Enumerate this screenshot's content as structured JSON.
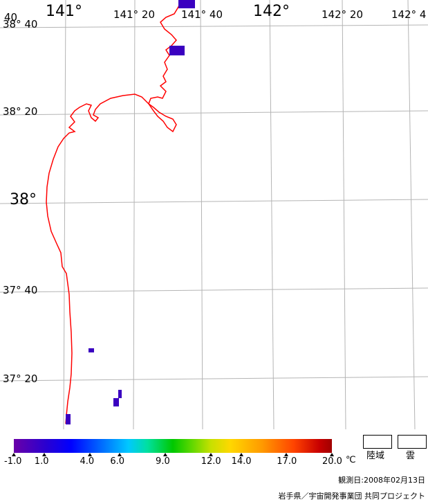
{
  "lon_labels": [
    "40",
    "141°",
    "141° 20",
    "141° 40",
    "142°",
    "142° 20",
    "142° 4"
  ],
  "lat_labels": [
    "38° 40",
    "38° 20",
    "38°",
    "37° 40",
    "37° 20"
  ],
  "colorbar": {
    "ticks": [
      "-1.0",
      "1.0",
      "4.0",
      "6.0",
      "9.0",
      "12.0",
      "14.0",
      "17.0",
      "20.0"
    ],
    "unit": "℃"
  },
  "legend": {
    "land": "陸域",
    "cloud": "雲"
  },
  "footer": {
    "observation": "観測日:2008年02月13日",
    "credit": "岩手県／宇宙開発事業団 共同プロジェクト"
  },
  "colors": {
    "coastline": "#ff0000",
    "grid": "#b4b4b4",
    "sst_patch": "#3a00c0"
  }
}
